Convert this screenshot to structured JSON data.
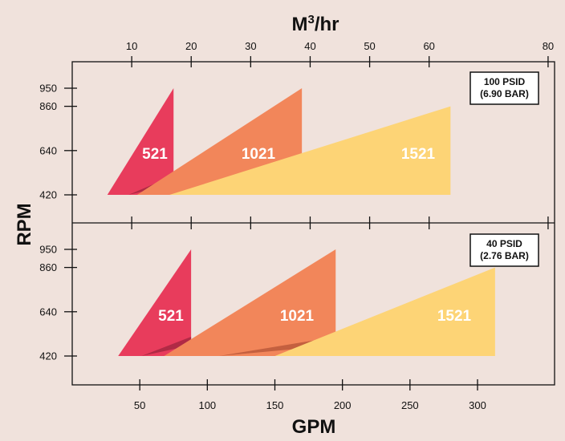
{
  "chart_data": {
    "type": "area",
    "title": "",
    "x_top_label": "M³/hr",
    "x_top_ticks": [
      10,
      20,
      30,
      40,
      50,
      60,
      80
    ],
    "x_bottom_label": "GPM",
    "x_bottom_ticks": [
      50,
      100,
      150,
      200,
      250,
      300
    ],
    "y_label": "RPM",
    "y_ticks": [
      950,
      860,
      640,
      420
    ],
    "colors": {
      "521": "#e83c5c",
      "1021": "#f2865a",
      "1521": "#fdd476",
      "shade_521": "#b02a45",
      "shade_1021": "#c4603f",
      "background": "#f0e2dc"
    },
    "panels": [
      {
        "condition_line1": "100 PSID",
        "condition_line2": "(6.90 BAR)",
        "series": [
          {
            "name": "521",
            "gpm_range": [
              26,
              75
            ],
            "rpm_range": [
              420,
              950
            ]
          },
          {
            "name": "1021",
            "gpm_range": [
              48,
              170
            ],
            "rpm_range": [
              420,
              950
            ]
          },
          {
            "name": "1521",
            "gpm_range": [
              72,
              280
            ],
            "rpm_range": [
              420,
              860
            ]
          }
        ]
      },
      {
        "condition_line1": "40 PSID",
        "condition_line2": "(2.76 BAR)",
        "series": [
          {
            "name": "521",
            "gpm_range": [
              34,
              88
            ],
            "rpm_range": [
              420,
              950
            ]
          },
          {
            "name": "1021",
            "gpm_range": [
              68,
              195
            ],
            "rpm_range": [
              420,
              950
            ]
          },
          {
            "name": "1521",
            "gpm_range": [
              150,
              313
            ],
            "rpm_range": [
              420,
              860
            ]
          }
        ]
      }
    ]
  }
}
